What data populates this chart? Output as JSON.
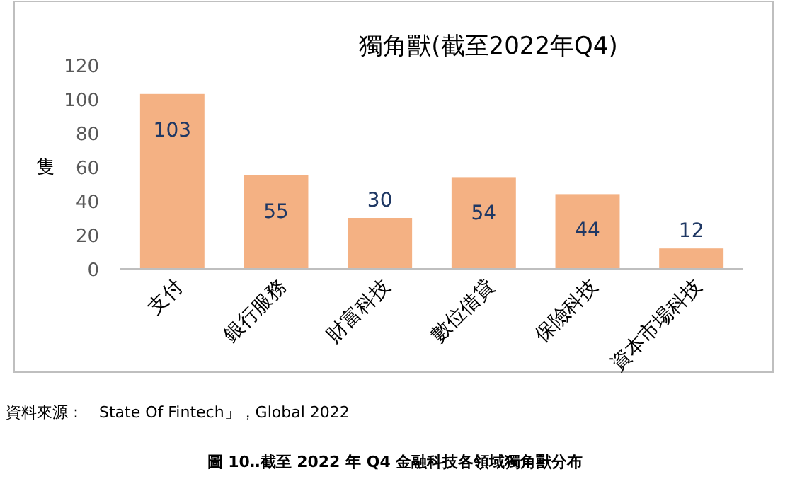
{
  "chart_data": {
    "type": "bar",
    "title": "獨角獸(截至2022年Q4)",
    "ylabel": "隻",
    "categories": [
      "支付",
      "銀行服務",
      "財富科技",
      "數位借貸",
      "保險科技",
      "資本市場科技"
    ],
    "values": [
      103,
      55,
      30,
      54,
      44,
      12
    ],
    "color": "#f4b183",
    "ylim": [
      0,
      120
    ],
    "yticks": [
      0,
      20,
      40,
      60,
      80,
      100,
      120
    ],
    "grid": false,
    "data_labels": true,
    "annotations": [
      "資料來源：「State Of Fintech」，Global 2022",
      "圖 10‥截至 2022 年 Q4 金融科技各領域獨角獸分布"
    ]
  }
}
